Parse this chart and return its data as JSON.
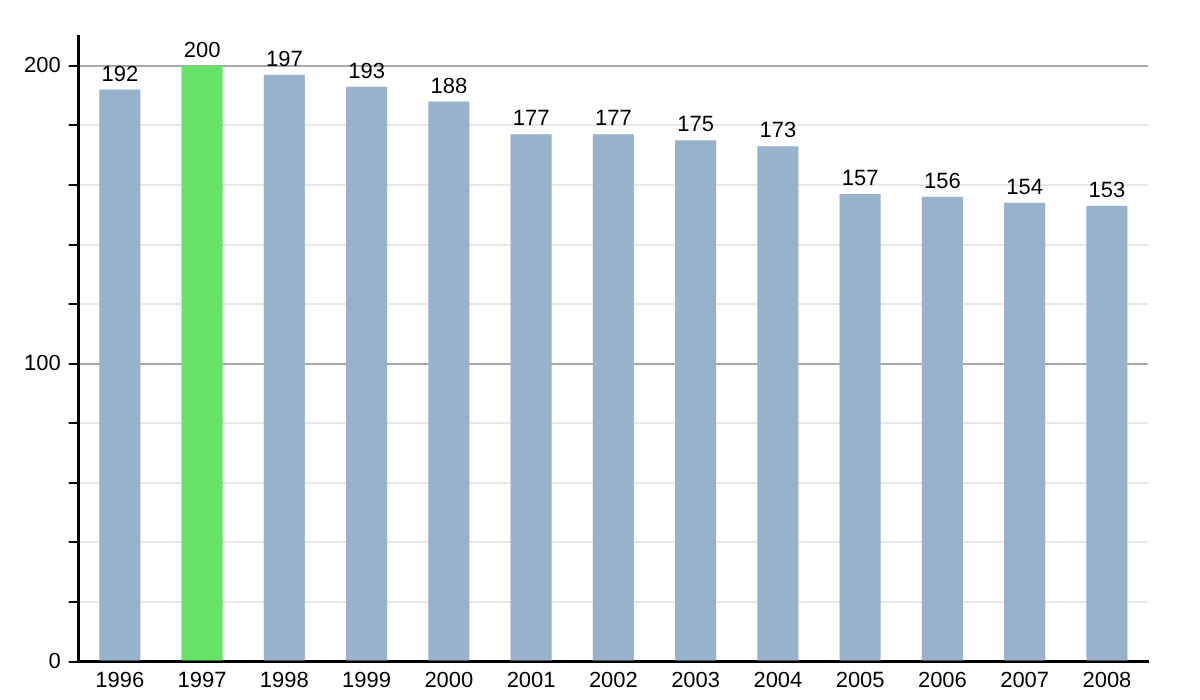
{
  "chart_data": {
    "type": "bar",
    "categories": [
      "1996",
      "1997",
      "1998",
      "1999",
      "2000",
      "2001",
      "2002",
      "2003",
      "2004",
      "2005",
      "2006",
      "2007",
      "2008"
    ],
    "values": [
      192,
      200,
      197,
      193,
      188,
      177,
      177,
      175,
      173,
      157,
      156,
      154,
      153
    ],
    "colors": [
      "#98b2cc",
      "#66e366",
      "#98b2cc",
      "#98b2cc",
      "#98b2cc",
      "#98b2cc",
      "#98b2cc",
      "#98b2cc",
      "#98b2cc",
      "#98b2cc",
      "#98b2cc",
      "#98b2cc",
      "#98b2cc"
    ],
    "ylim": [
      0,
      210
    ],
    "yticks": [
      0,
      {
        "value": 20,
        "label": null
      },
      {
        "value": 40,
        "label": null
      },
      {
        "value": 60,
        "label": null
      },
      {
        "value": 80,
        "label": null
      },
      100,
      {
        "value": 120,
        "label": null
      },
      {
        "value": 140,
        "label": null
      },
      {
        "value": 160,
        "label": null
      },
      {
        "value": 180,
        "label": null
      },
      200
    ],
    "grid": true,
    "data_labels": true
  }
}
